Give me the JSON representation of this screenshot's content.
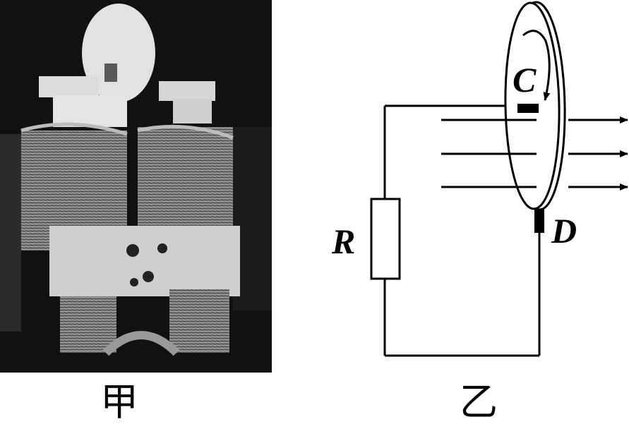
{
  "captions": {
    "left": "甲",
    "right": "乙"
  },
  "circuit": {
    "resistor_label": "R",
    "brush_top_label": "C",
    "brush_bottom_label": "D"
  }
}
